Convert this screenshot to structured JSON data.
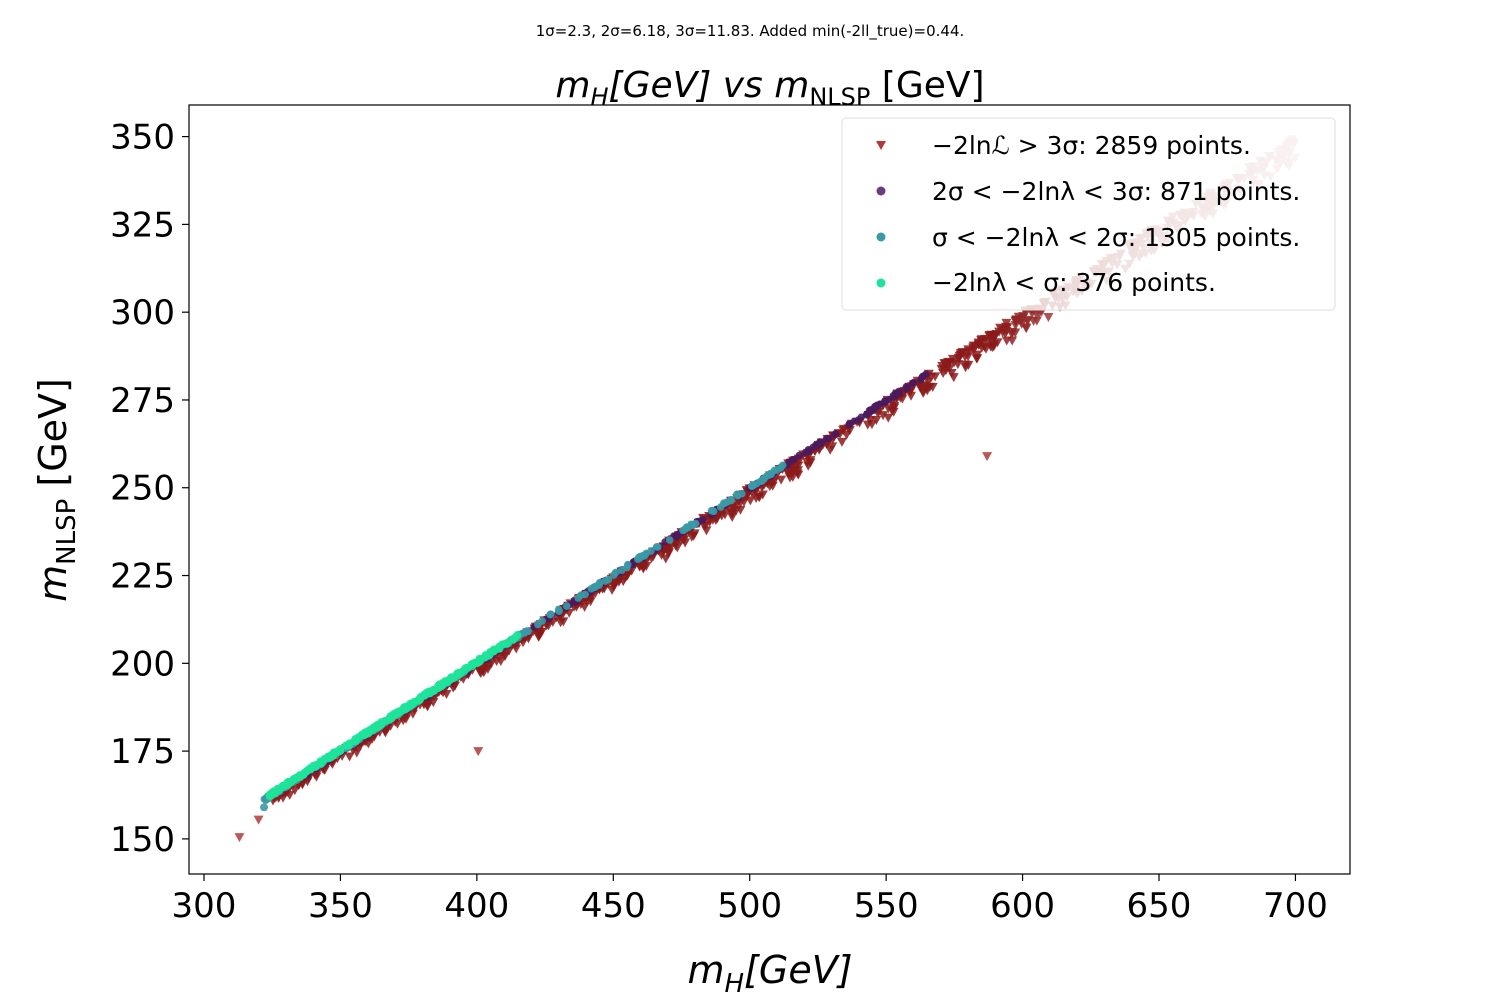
{
  "chart_data": {
    "type": "scatter",
    "suptitle": "1σ=2.3, 2σ=6.18, 3σ=11.83. Added min(-2ll_true)=0.44.",
    "title": "m_H[GeV] vs m_NLSP [GeV]",
    "title_parts": {
      "left": "m",
      "left_sub": "H",
      "mid": "[GeV] vs ",
      "right": "m",
      "right_sub": "NLSP",
      "tail": " [GeV]"
    },
    "xlabel": "m_H[GeV]",
    "xlabel_parts": {
      "sym": "m",
      "sub": "H",
      "tail": "[GeV]"
    },
    "ylabel": "m_NLSP [GeV]",
    "ylabel_parts": {
      "sym": "m",
      "sub": "NLSP",
      "tail": " [GeV]"
    },
    "xlim": [
      294.5,
      720
    ],
    "ylim": [
      140,
      359
    ],
    "xticks": [
      300,
      350,
      400,
      450,
      500,
      550,
      600,
      650,
      700
    ],
    "yticks": [
      150,
      175,
      200,
      225,
      250,
      275,
      300,
      325,
      350
    ],
    "grid": false,
    "legend_position": "top-right",
    "relation": "m_NLSP ≈ 0.5 · m_H",
    "series": [
      {
        "name": "−2lnℒ > 3σ: 2859 points.",
        "marker": "triangle-down",
        "count": 2859,
        "color_low": "#8b1a1a",
        "color_high": "#f2d7d5",
        "x_range": [
          313,
          700
        ],
        "outliers": [
          [
            313,
            150.5
          ],
          [
            320,
            155.5
          ],
          [
            400.5,
            175
          ],
          [
            587,
            259
          ]
        ]
      },
      {
        "name": "2σ < −2lnλ < 3σ: 871 points.",
        "marker": "circle",
        "count": 871,
        "color": "#4a1a5e",
        "x_range": [
          325,
          565
        ]
      },
      {
        "name": "σ < −2lnλ < 2σ: 1305 points.",
        "marker": "circle",
        "count": 1305,
        "color": "#3a9aa6",
        "x_range": [
          322,
          513
        ]
      },
      {
        "name": "−2lnλ < σ: 376 points.",
        "marker": "circle",
        "count": 376,
        "color": "#1ee39a",
        "x_range": [
          324,
          415
        ]
      }
    ]
  }
}
